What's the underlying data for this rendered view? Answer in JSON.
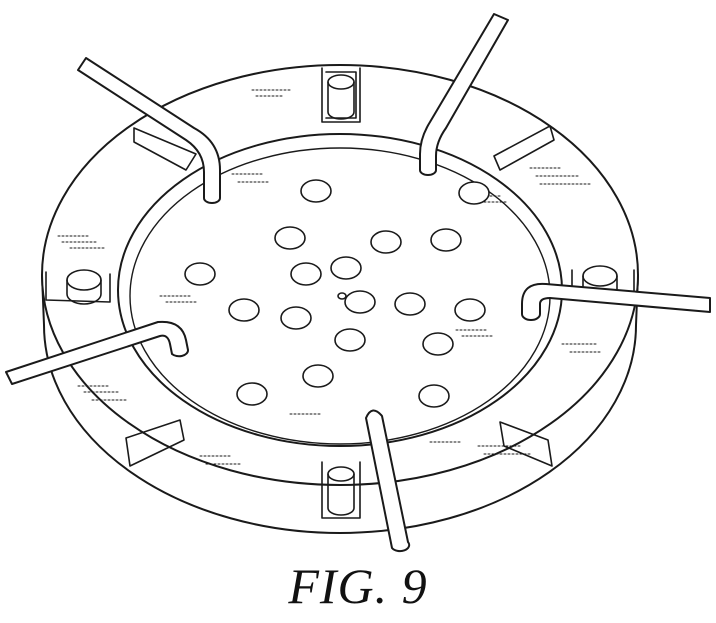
{
  "figure": {
    "caption": "FIG. 9",
    "line_color": "#1a1a1a",
    "background": "#ffffff"
  }
}
